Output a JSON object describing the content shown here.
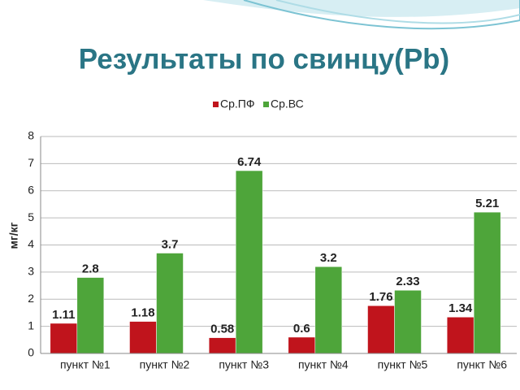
{
  "chart_data": {
    "type": "bar",
    "title": "Результаты по свинцу(Pb)",
    "y_label": "мг/кг",
    "categories": [
      "пункт №1",
      "пункт №2",
      "пункт №3",
      "пункт №4",
      "пункт №5",
      "пункт №6"
    ],
    "series": [
      {
        "name": "Ср.ПФ",
        "color": "#c0141c",
        "values": [
          1.11,
          1.18,
          0.58,
          0.6,
          1.76,
          1.34
        ]
      },
      {
        "name": "Ср.ВС",
        "color": "#4ea53a",
        "values": [
          2.8,
          3.7,
          6.74,
          3.2,
          2.33,
          5.21
        ]
      }
    ],
    "ylim": [
      0,
      8
    ],
    "yticks": [
      0,
      1,
      2,
      3,
      4,
      5,
      6,
      7,
      8
    ],
    "grid": true,
    "legend": "top"
  }
}
